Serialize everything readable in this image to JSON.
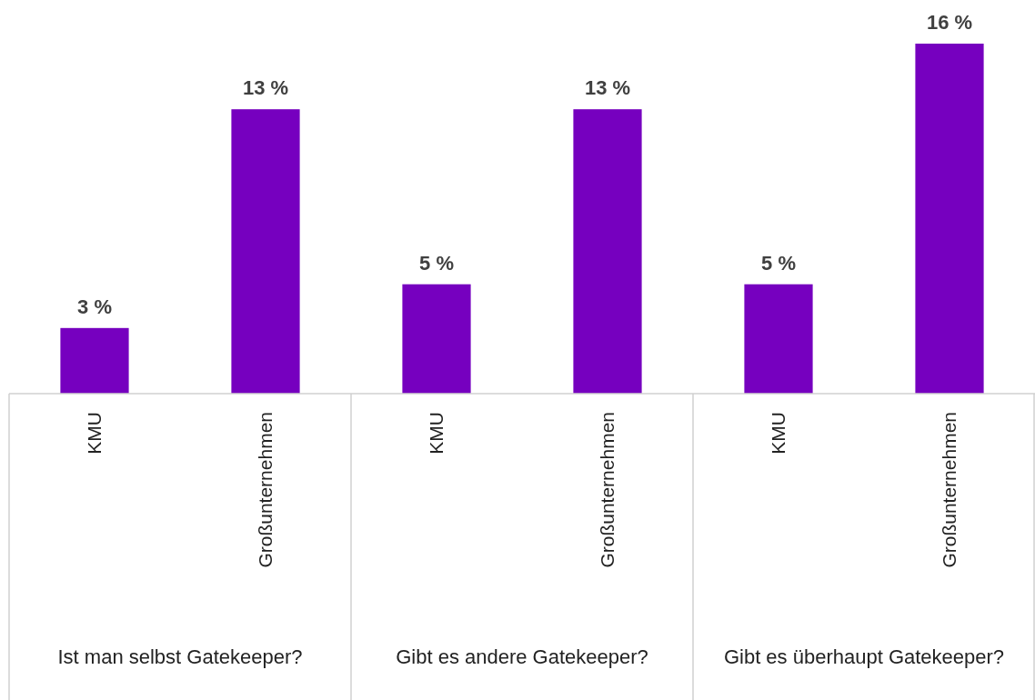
{
  "chart_data": {
    "type": "bar",
    "categories": [
      "KMU",
      "Großunternehmen",
      "KMU",
      "Großunternehmen",
      "KMU",
      "Großunternehmen"
    ],
    "values": [
      3,
      13,
      5,
      13,
      5,
      16
    ],
    "color": "#7600bf",
    "value_labels": [
      "3 %",
      "13 %",
      "5 %",
      "13 %",
      "5 %",
      "16 %"
    ],
    "annotations": [
      "Ist man selbst Gatekeeper?",
      "Gibt es andere Gatekeeper?",
      "Gibt es überhaupt Gatekeeper?"
    ]
  }
}
